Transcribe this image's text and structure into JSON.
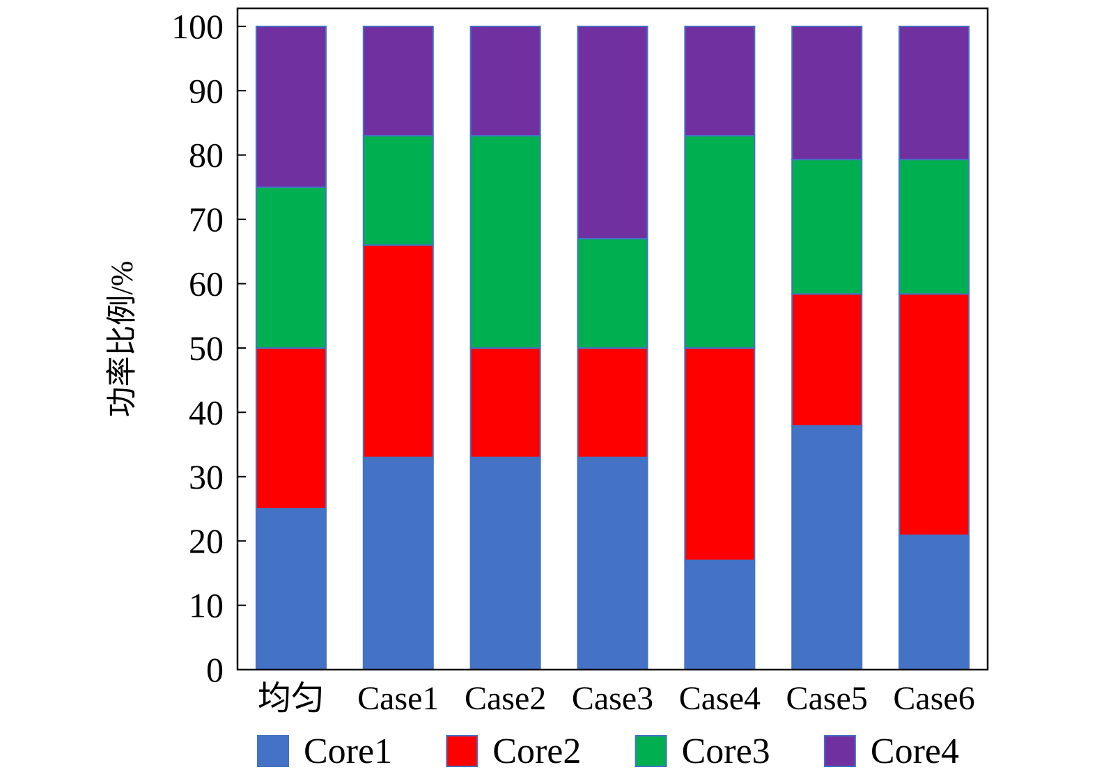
{
  "chart_data": {
    "type": "bar",
    "stacked": true,
    "categories": [
      "均匀",
      "Case1",
      "Case2",
      "Case3",
      "Case4",
      "Case5",
      "Case6"
    ],
    "series": [
      {
        "name": "Core1",
        "color": "#4472C4",
        "values": [
          25,
          33,
          33,
          33,
          17,
          37.9,
          20.9
        ]
      },
      {
        "name": "Core2",
        "color": "#FF0000",
        "values": [
          25,
          33,
          17,
          17,
          33,
          20.5,
          37.5
        ]
      },
      {
        "name": "Core3",
        "color": "#00B050",
        "values": [
          25,
          17,
          33,
          17,
          33,
          20.9,
          20.9
        ]
      },
      {
        "name": "Core4",
        "color": "#7030A0",
        "values": [
          25,
          17,
          17,
          33,
          17,
          20.7,
          20.7
        ]
      }
    ],
    "ylabel": "功率比例/%",
    "ylim": [
      0,
      102.8
    ],
    "yticks": [
      0,
      10,
      20,
      30,
      40,
      50,
      60,
      70,
      80,
      90,
      100
    ],
    "grid": false,
    "legend_position": "bottom",
    "bar_edge_color": "#4472C4"
  }
}
